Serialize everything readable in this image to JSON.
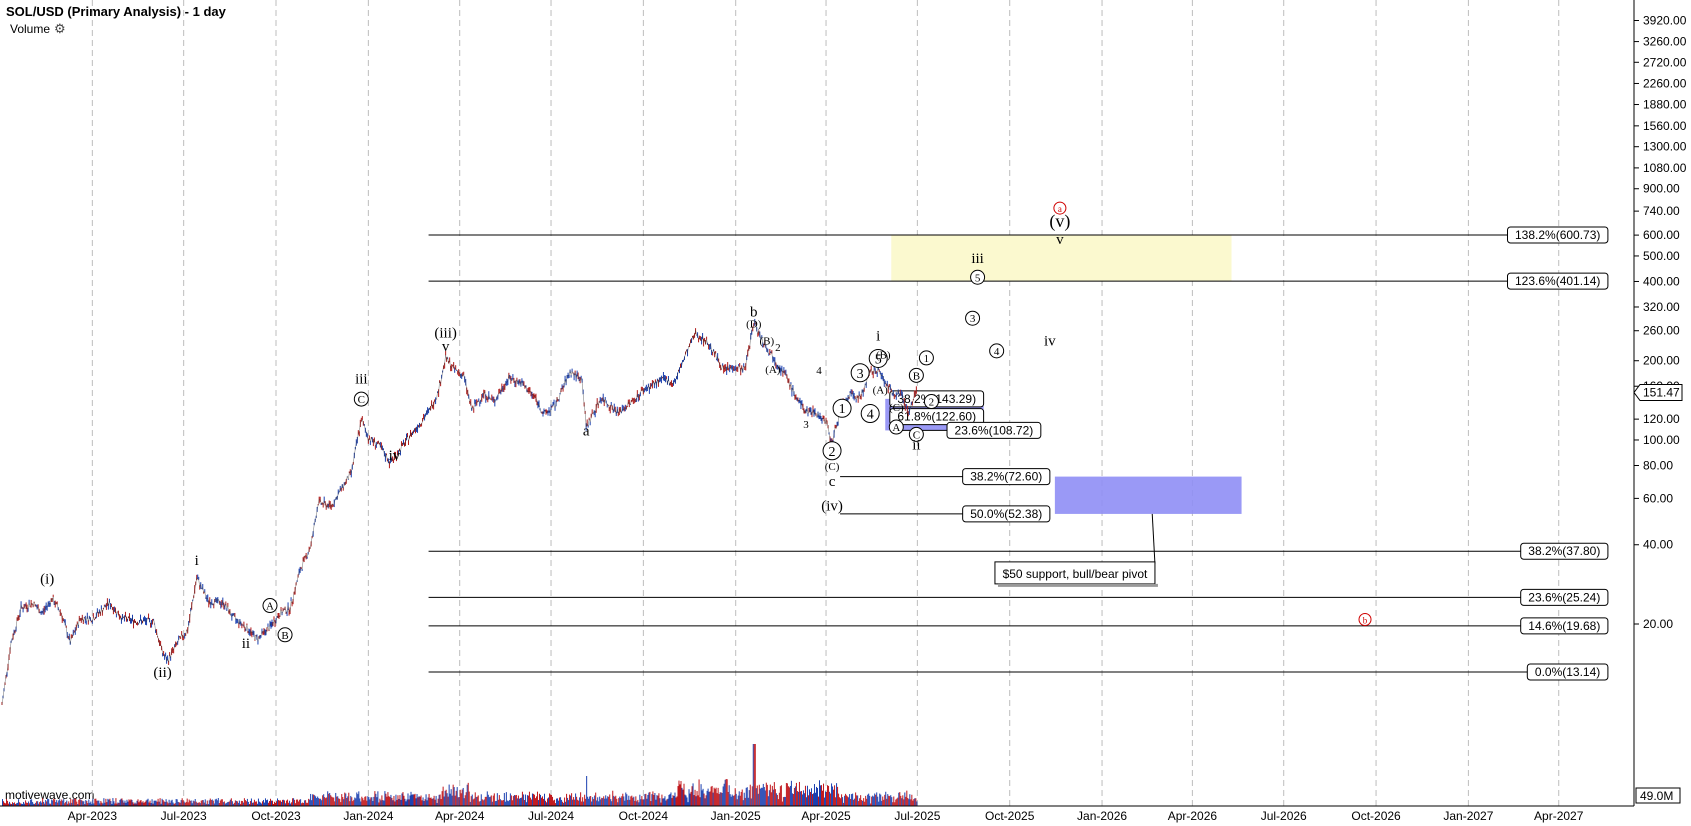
{
  "header": {
    "title": "SOL/USD (Primary Analysis) - 1 day",
    "volume_label": "Volume",
    "settings_icon": "gear-icon"
  },
  "watermark": "motivewave.com",
  "chart_data": {
    "type": "line",
    "scale": "log",
    "ylim": [
      10,
      4600
    ],
    "xlim": [
      "2022-12-30",
      "2027-06-15"
    ],
    "grid": "vertical dashed at month ticks",
    "x_ticks": [
      {
        "date": "2023-04-01",
        "label": "Apr-2023"
      },
      {
        "date": "2023-07-01",
        "label": "Jul-2023"
      },
      {
        "date": "2023-10-01",
        "label": "Oct-2023"
      },
      {
        "date": "2024-01-01",
        "label": "Jan-2024"
      },
      {
        "date": "2024-04-01",
        "label": "Apr-2024"
      },
      {
        "date": "2024-07-01",
        "label": "Jul-2024"
      },
      {
        "date": "2024-10-01",
        "label": "Oct-2024"
      },
      {
        "date": "2025-01-01",
        "label": "Jan-2025"
      },
      {
        "date": "2025-04-01",
        "label": "Apr-2025"
      },
      {
        "date": "2025-07-01",
        "label": "Jul-2025"
      },
      {
        "date": "2025-10-01",
        "label": "Oct-2025"
      },
      {
        "date": "2026-01-01",
        "label": "Jan-2026"
      },
      {
        "date": "2026-04-01",
        "label": "Apr-2026"
      },
      {
        "date": "2026-07-01",
        "label": "Jul-2026"
      },
      {
        "date": "2026-10-01",
        "label": "Oct-2026"
      },
      {
        "date": "2027-01-01",
        "label": "Jan-2027"
      },
      {
        "date": "2027-04-01",
        "label": "Apr-2027"
      }
    ],
    "y_ticks": [
      {
        "v": 3920,
        "label": "3920.00"
      },
      {
        "v": 3260,
        "label": "3260.00"
      },
      {
        "v": 2720,
        "label": "2720.00"
      },
      {
        "v": 2260,
        "label": "2260.00"
      },
      {
        "v": 1880,
        "label": "1880.00"
      },
      {
        "v": 1560,
        "label": "1560.00"
      },
      {
        "v": 1300,
        "label": "1300.00"
      },
      {
        "v": 1080,
        "label": "1080.00"
      },
      {
        "v": 900,
        "label": "900.00"
      },
      {
        "v": 740,
        "label": "740.00"
      },
      {
        "v": 600,
        "label": "600.00"
      },
      {
        "v": 500,
        "label": "500.00"
      },
      {
        "v": 400,
        "label": "400.00"
      },
      {
        "v": 320,
        "label": "320.00"
      },
      {
        "v": 260,
        "label": "260.00"
      },
      {
        "v": 200,
        "label": "200.00"
      },
      {
        "v": 160,
        "label": "160.00"
      },
      {
        "v": 120,
        "label": "120.00"
      },
      {
        "v": 100,
        "label": "100.00"
      },
      {
        "v": 80,
        "label": "80.00"
      },
      {
        "v": 60,
        "label": "60.00"
      },
      {
        "v": 40,
        "label": "40.00"
      },
      {
        "v": 20,
        "label": "20.00"
      }
    ],
    "last_price": {
      "v": 151.47,
      "label": "151.47"
    },
    "volume_box": "49.0M",
    "price_series": {
      "name": "SOL/USD",
      "points": [
        [
          "2023-01-01",
          9.9
        ],
        [
          "2023-01-10",
          17
        ],
        [
          "2023-01-20",
          23
        ],
        [
          "2023-02-01",
          24
        ],
        [
          "2023-02-10",
          22
        ],
        [
          "2023-02-20",
          25
        ],
        [
          "2023-03-01",
          22
        ],
        [
          "2023-03-10",
          17
        ],
        [
          "2023-03-20",
          21
        ],
        [
          "2023-04-01",
          21
        ],
        [
          "2023-04-18",
          24
        ],
        [
          "2023-05-01",
          21
        ],
        [
          "2023-05-15",
          20.5
        ],
        [
          "2023-06-01",
          20.5
        ],
        [
          "2023-06-10",
          15.5
        ],
        [
          "2023-06-15",
          14.5
        ],
        [
          "2023-06-25",
          17
        ],
        [
          "2023-07-05",
          19
        ],
        [
          "2023-07-14",
          30
        ],
        [
          "2023-07-25",
          24.5
        ],
        [
          "2023-08-10",
          24
        ],
        [
          "2023-08-20",
          21
        ],
        [
          "2023-09-01",
          19.5
        ],
        [
          "2023-09-12",
          17.5
        ],
        [
          "2023-09-25",
          19.5
        ],
        [
          "2023-10-05",
          22
        ],
        [
          "2023-10-15",
          23
        ],
        [
          "2023-10-25",
          32
        ],
        [
          "2023-11-05",
          40
        ],
        [
          "2023-11-12",
          58
        ],
        [
          "2023-11-25",
          56
        ],
        [
          "2023-12-05",
          65
        ],
        [
          "2023-12-15",
          75
        ],
        [
          "2023-12-25",
          120
        ],
        [
          "2024-01-01",
          102
        ],
        [
          "2024-01-12",
          95
        ],
        [
          "2024-01-23",
          82
        ],
        [
          "2024-02-05",
          96
        ],
        [
          "2024-02-15",
          108
        ],
        [
          "2024-03-01",
          128
        ],
        [
          "2024-03-10",
          150
        ],
        [
          "2024-03-18",
          205
        ],
        [
          "2024-03-25",
          188
        ],
        [
          "2024-04-05",
          175
        ],
        [
          "2024-04-13",
          130
        ],
        [
          "2024-04-25",
          150
        ],
        [
          "2024-05-05",
          140
        ],
        [
          "2024-05-20",
          172
        ],
        [
          "2024-06-01",
          165
        ],
        [
          "2024-06-15",
          145
        ],
        [
          "2024-06-24",
          125
        ],
        [
          "2024-07-05",
          135
        ],
        [
          "2024-07-20",
          182
        ],
        [
          "2024-08-01",
          170
        ],
        [
          "2024-08-05",
          112
        ],
        [
          "2024-08-20",
          145
        ],
        [
          "2024-09-06",
          127
        ],
        [
          "2024-09-20",
          140
        ],
        [
          "2024-10-01",
          155
        ],
        [
          "2024-10-20",
          170
        ],
        [
          "2024-11-01",
          165
        ],
        [
          "2024-11-12",
          210
        ],
        [
          "2024-11-22",
          255
        ],
        [
          "2024-12-05",
          232
        ],
        [
          "2024-12-20",
          185
        ],
        [
          "2025-01-01",
          190
        ],
        [
          "2025-01-10",
          185
        ],
        [
          "2025-01-19",
          280
        ],
        [
          "2025-01-30",
          230
        ],
        [
          "2025-02-10",
          200
        ],
        [
          "2025-02-20",
          175
        ],
        [
          "2025-03-01",
          148
        ],
        [
          "2025-03-10",
          130
        ],
        [
          "2025-03-20",
          128
        ],
        [
          "2025-04-01",
          118
        ],
        [
          "2025-04-07",
          97
        ],
        [
          "2025-04-15",
          130
        ],
        [
          "2025-04-25",
          148
        ],
        [
          "2025-05-05",
          145
        ],
        [
          "2025-05-15",
          180
        ],
        [
          "2025-05-23",
          185
        ],
        [
          "2025-06-05",
          152
        ],
        [
          "2025-06-15",
          150
        ],
        [
          "2025-06-22",
          128
        ],
        [
          "2025-06-30",
          151.47
        ]
      ]
    },
    "fib_levels": [
      {
        "label": "138.2%(600.73)",
        "v": 600.73,
        "from": "2024-03-01",
        "to": "2027-05-20"
      },
      {
        "label": "123.6%(401.14)",
        "v": 401.14,
        "from": "2024-03-01",
        "to": "2027-05-20"
      },
      {
        "label": "38.2%(143.29)",
        "v": 143.29,
        "from": "2025-06-05",
        "to": "2025-09-05"
      },
      {
        "label": "61.8%(122.60)",
        "v": 122.6,
        "from": "2025-06-05",
        "to": "2025-09-05"
      },
      {
        "label": "23.6%(108.72)",
        "v": 108.72,
        "from": "2025-06-05",
        "to": "2025-11-01"
      },
      {
        "label": "38.2%(72.60)",
        "v": 72.6,
        "from": "2025-04-15",
        "to": "2025-11-10"
      },
      {
        "label": "50.0%(52.38)",
        "v": 52.38,
        "from": "2025-04-15",
        "to": "2025-11-10"
      },
      {
        "label": "38.2%(37.80)",
        "v": 37.8,
        "from": "2024-03-01",
        "to": "2027-05-20"
      },
      {
        "label": "23.6%(25.24)",
        "v": 25.24,
        "from": "2024-03-01",
        "to": "2027-05-20"
      },
      {
        "label": "14.6%(19.68)",
        "v": 19.68,
        "from": "2024-03-01",
        "to": "2027-05-20"
      },
      {
        "label": "0.0%(13.14)",
        "v": 13.14,
        "from": "2024-03-01",
        "to": "2027-05-20"
      }
    ],
    "zones": [
      {
        "name": "yellow-target",
        "from": "2025-06-05",
        "to": "2026-05-10",
        "top": 600.73,
        "bottom": 401.14,
        "color": "#fbf9cf"
      },
      {
        "name": "blue-support-1",
        "from": "2025-05-30",
        "to": "2025-09-05",
        "top": 143.29,
        "bottom": 108.72,
        "color": "#8f8ef5"
      },
      {
        "name": "blue-support-2",
        "from": "2025-11-15",
        "to": "2026-05-20",
        "top": 72.6,
        "bottom": 52.38,
        "color": "#8f8ef5"
      }
    ],
    "callout": {
      "text": "$50 support, bull/bear pivot",
      "date": "2025-12-05",
      "v": 31,
      "anchor_date": "2026-02-20",
      "anchor_v": 52.38
    },
    "wave_labels": [
      {
        "t": "(i)",
        "d": "2023-02-15",
        "v": 28.5
      },
      {
        "t": "(ii)",
        "d": "2023-06-10",
        "v": 12.6
      },
      {
        "t": "i",
        "d": "2023-07-14",
        "v": 33.5
      },
      {
        "t": "ii",
        "d": "2023-09-01",
        "v": 16.2
      },
      {
        "t": "A",
        "d": "2023-09-25",
        "v": 23.5,
        "circle": true
      },
      {
        "t": "B",
        "d": "2023-10-10",
        "v": 18.2,
        "circle": true
      },
      {
        "t": "iii",
        "d": "2023-12-25",
        "v": 164
      },
      {
        "t": "C",
        "d": "2023-12-25",
        "v": 143,
        "circle": true
      },
      {
        "t": "iv",
        "d": "2024-01-27",
        "v": 84
      },
      {
        "t": "(iii)",
        "d": "2024-03-18",
        "v": 245
      },
      {
        "t": "v",
        "d": "2024-03-18",
        "v": 218
      },
      {
        "t": "a",
        "d": "2024-08-05",
        "v": 104
      },
      {
        "t": "b",
        "d": "2025-01-19",
        "v": 295
      },
      {
        "t": "(D)",
        "d": "2025-01-19",
        "v": 267,
        "small": true
      },
      {
        "t": "(B)",
        "d": "2025-02-01",
        "v": 230,
        "small": true
      },
      {
        "t": "2",
        "d": "2025-02-12",
        "v": 218,
        "small": true
      },
      {
        "t": "(A)",
        "d": "2025-02-07",
        "v": 180,
        "small": true
      },
      {
        "t": "4",
        "d": "2025-03-25",
        "v": 178,
        "small": true
      },
      {
        "t": "3",
        "d": "2025-03-12",
        "v": 111,
        "small": true
      },
      {
        "t": "1",
        "d": "2025-04-17",
        "v": 132,
        "circle2": true
      },
      {
        "t": "2",
        "d": "2025-04-07",
        "v": 91,
        "circle2": true
      },
      {
        "t": "(C)",
        "d": "2025-04-07",
        "v": 77,
        "small": true
      },
      {
        "t": "c",
        "d": "2025-04-07",
        "v": 67
      },
      {
        "t": "(iv)",
        "d": "2025-04-07",
        "v": 54
      },
      {
        "t": "3",
        "d": "2025-05-05",
        "v": 180,
        "circle2": true
      },
      {
        "t": "4",
        "d": "2025-05-15",
        "v": 126,
        "circle2": true
      },
      {
        "t": "5",
        "d": "2025-05-23",
        "v": 204,
        "circle2": true
      },
      {
        "t": "(B)",
        "d": "2025-05-28",
        "v": 204,
        "small": true
      },
      {
        "t": "i",
        "d": "2025-05-23",
        "v": 239
      },
      {
        "t": "(A)",
        "d": "2025-05-25",
        "v": 150,
        "small": true
      },
      {
        "t": "(C)",
        "d": "2025-06-10",
        "v": 129,
        "small": true
      },
      {
        "t": "A",
        "d": "2025-06-10",
        "v": 112,
        "circle": true
      },
      {
        "t": "B",
        "d": "2025-06-30",
        "v": 176,
        "circle": true
      },
      {
        "t": "C",
        "d": "2025-06-30",
        "v": 105,
        "circle": true
      },
      {
        "t": "ii",
        "d": "2025-06-30",
        "v": 92
      },
      {
        "t": "1",
        "d": "2025-07-10",
        "v": 205,
        "circle": true
      },
      {
        "t": "2",
        "d": "2025-07-15",
        "v": 140,
        "circle": true
      },
      {
        "t": "3",
        "d": "2025-08-25",
        "v": 290,
        "circle": true
      },
      {
        "t": "4",
        "d": "2025-09-18",
        "v": 218,
        "circle": true
      },
      {
        "t": "5",
        "d": "2025-08-30",
        "v": 415,
        "circle": true
      },
      {
        "t": "iii",
        "d": "2025-08-30",
        "v": 470
      },
      {
        "t": "iv",
        "d": "2025-11-10",
        "v": 228
      },
      {
        "t": "v",
        "d": "2025-11-20",
        "v": 555
      },
      {
        "t": "(v)",
        "d": "2025-11-20",
        "v": 645,
        "big": true
      },
      {
        "t": "a",
        "d": "2025-11-20",
        "v": 760,
        "red": true
      },
      {
        "t": "b",
        "d": "2026-09-20",
        "v": 20.8,
        "red": true
      }
    ]
  }
}
